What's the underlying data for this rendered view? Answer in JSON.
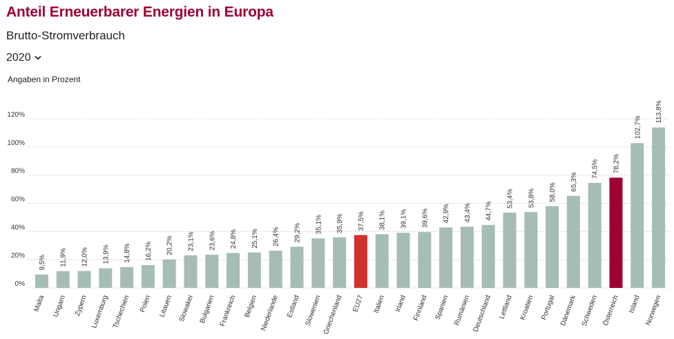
{
  "chart_data": {
    "type": "bar",
    "title": "Anteil Erneuerbarer Energien in Europa",
    "subtitle": "Brutto-Stromverbrauch",
    "year": "2020",
    "unit_label": "Angaben in Prozent",
    "categories": [
      "Malta",
      "Ungarn",
      "Zypern",
      "Luxemburg",
      "Tschechien",
      "Polen",
      "Litauen",
      "Slowakei",
      "Bulgarien",
      "Frankreich",
      "Belgien",
      "Niederlande",
      "Estland",
      "Slowenien",
      "Griechenland",
      "EU27",
      "Italien",
      "Irland",
      "Finnland",
      "Spanien",
      "Rumänien",
      "Deutschland",
      "Lettland",
      "Kroatien",
      "Portugal",
      "Dänemark",
      "Schweden",
      "Österreich",
      "Island",
      "Norwegen"
    ],
    "values": [
      9.5,
      11.9,
      12.0,
      13.9,
      14.8,
      16.2,
      20.2,
      23.1,
      23.6,
      24.8,
      25.1,
      26.4,
      29.2,
      35.1,
      35.9,
      37.5,
      38.1,
      39.1,
      39.6,
      42.9,
      43.4,
      44.7,
      53.4,
      53.8,
      58.0,
      65.3,
      74.5,
      78.2,
      102.7,
      113.8
    ],
    "value_labels": [
      "9,5%",
      "11,9%",
      "12,0%",
      "13,9%",
      "14,8%",
      "16,2%",
      "20,2%",
      "23,1%",
      "23,6%",
      "24,8%",
      "25,1%",
      "26,4%",
      "29,2%",
      "35,1%",
      "35,9%",
      "37,5%",
      "38,1%",
      "39,1%",
      "39,6%",
      "42,9%",
      "43,4%",
      "44,7%",
      "53,4%",
      "53,8%",
      "58,0%",
      "65,3%",
      "74,5%",
      "78,2%",
      "102,7%",
      "113,8%"
    ],
    "colors": [
      "#a5bdb5",
      "#a5bdb5",
      "#a5bdb5",
      "#a5bdb5",
      "#a5bdb5",
      "#a5bdb5",
      "#a5bdb5",
      "#a5bdb5",
      "#a5bdb5",
      "#a5bdb5",
      "#a5bdb5",
      "#a5bdb5",
      "#a5bdb5",
      "#a5bdb5",
      "#a5bdb5",
      "#d0312d",
      "#a5bdb5",
      "#a5bdb5",
      "#a5bdb5",
      "#a5bdb5",
      "#a5bdb5",
      "#a5bdb5",
      "#a5bdb5",
      "#a5bdb5",
      "#a5bdb5",
      "#a5bdb5",
      "#a5bdb5",
      "#9e0033",
      "#a5bdb5",
      "#a5bdb5"
    ],
    "ylim": [
      0,
      120
    ],
    "yticks": [
      {
        "value": 0,
        "label": "0%"
      },
      {
        "value": 20,
        "label": "20%"
      },
      {
        "value": 40,
        "label": "40%"
      },
      {
        "value": 60,
        "label": "60%"
      },
      {
        "value": 80,
        "label": "80%"
      },
      {
        "value": 100,
        "label": "100%"
      },
      {
        "value": 120,
        "label": "120%"
      }
    ],
    "grid": true
  }
}
